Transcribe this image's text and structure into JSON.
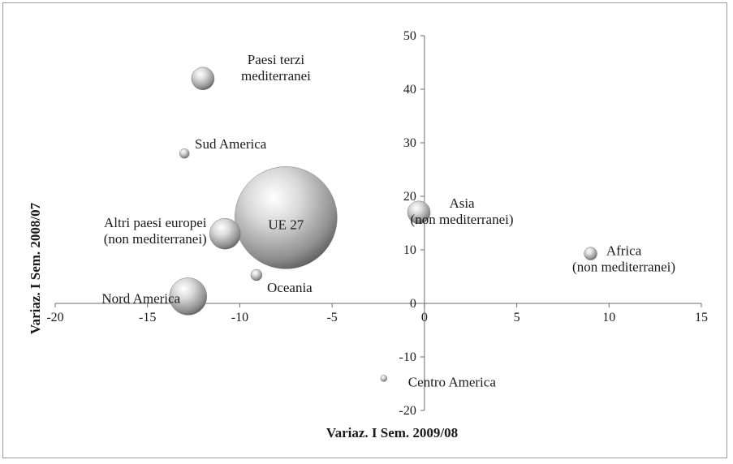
{
  "chart_data": {
    "type": "scatter",
    "subtype": "bubble",
    "xlabel": "Variaz. I Sem. 2009/08",
    "ylabel": "Variaz. I Sem. 2008/07",
    "xlim": [
      -20,
      15
    ],
    "ylim": [
      -20,
      50
    ],
    "xticks": [
      -20,
      -15,
      -10,
      -5,
      0,
      5,
      10,
      15
    ],
    "yticks": [
      -20,
      -10,
      0,
      10,
      20,
      30,
      40,
      50
    ],
    "grid": false,
    "legend": "none",
    "bubble_color": "#b0b0b0",
    "points": [
      {
        "label": [
          "Paesi terzi",
          "mediterranei"
        ],
        "x": -12.0,
        "y": 42.0,
        "size": 14
      },
      {
        "label": [
          "Sud America"
        ],
        "x": -13.0,
        "y": 28.0,
        "size": 6
      },
      {
        "label": [
          "UE 27"
        ],
        "x": -7.5,
        "y": 16.0,
        "size": 63
      },
      {
        "label": [
          "Altri paesi europei",
          "(non mediterranei)"
        ],
        "x": -10.8,
        "y": 13.0,
        "size": 19
      },
      {
        "label": [
          "Nord America"
        ],
        "x": -12.8,
        "y": 1.3,
        "size": 23
      },
      {
        "label": [
          "Oceania"
        ],
        "x": -9.1,
        "y": 5.3,
        "size": 7
      },
      {
        "label": [
          "Asia",
          "(non mediterranei)"
        ],
        "x": -0.3,
        "y": 17.0,
        "size": 14
      },
      {
        "label": [
          "Africa",
          "(non mediterranei)"
        ],
        "x": 9.0,
        "y": 9.3,
        "size": 8
      },
      {
        "label": [
          "Centro America"
        ],
        "x": -2.2,
        "y": -14.0,
        "size": 4
      }
    ]
  }
}
